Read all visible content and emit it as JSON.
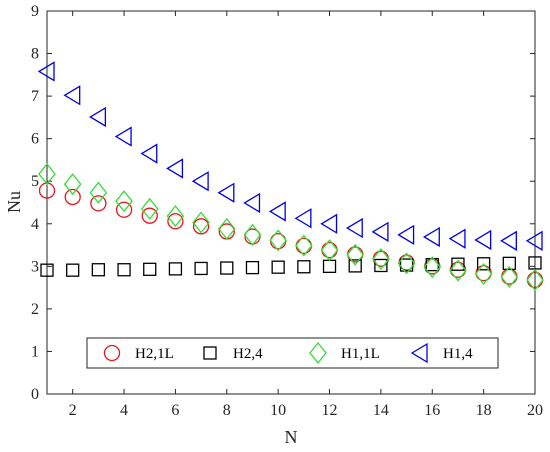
{
  "chart_data": {
    "type": "scatter",
    "xlabel": "N",
    "ylabel": "Nu",
    "xlim": [
      1,
      20
    ],
    "ylim": [
      0,
      9
    ],
    "x_ticks": [
      "2",
      "4",
      "6",
      "8",
      "10",
      "12",
      "14",
      "16",
      "18",
      "20"
    ],
    "y_ticks": [
      "0",
      "1",
      "2",
      "3",
      "4",
      "5",
      "6",
      "7",
      "8",
      "9"
    ],
    "grid": false,
    "legend_position": "bottom-center",
    "x": [
      1,
      2,
      3,
      4,
      5,
      6,
      7,
      8,
      9,
      10,
      11,
      12,
      13,
      14,
      15,
      16,
      17,
      18,
      19,
      20
    ],
    "series": [
      {
        "name": "H2,1L",
        "marker": "circle",
        "color": "#e8141e",
        "values": [
          4.78,
          4.63,
          4.48,
          4.33,
          4.19,
          4.06,
          3.94,
          3.82,
          3.7,
          3.59,
          3.48,
          3.38,
          3.28,
          3.18,
          3.09,
          3.0,
          2.92,
          2.84,
          2.76,
          2.68
        ]
      },
      {
        "name": "H2,4",
        "marker": "square",
        "color": "#000000",
        "values": [
          2.91,
          2.91,
          2.92,
          2.92,
          2.93,
          2.94,
          2.95,
          2.96,
          2.97,
          2.98,
          2.99,
          3.0,
          3.01,
          3.02,
          3.03,
          3.04,
          3.05,
          3.06,
          3.07,
          3.08
        ]
      },
      {
        "name": "H1,1L",
        "marker": "diamond",
        "color": "#33dd33",
        "values": [
          5.17,
          4.93,
          4.73,
          4.53,
          4.35,
          4.18,
          4.03,
          3.88,
          3.74,
          3.61,
          3.49,
          3.38,
          3.27,
          3.17,
          3.07,
          2.98,
          2.9,
          2.82,
          2.75,
          2.68
        ]
      },
      {
        "name": "H1,4",
        "marker": "triangle-left",
        "color": "#0000e6",
        "values": [
          7.58,
          7.02,
          6.51,
          6.05,
          5.65,
          5.3,
          5.0,
          4.73,
          4.49,
          4.29,
          4.13,
          4.0,
          3.9,
          3.81,
          3.74,
          3.69,
          3.65,
          3.62,
          3.6,
          3.6
        ]
      }
    ]
  }
}
